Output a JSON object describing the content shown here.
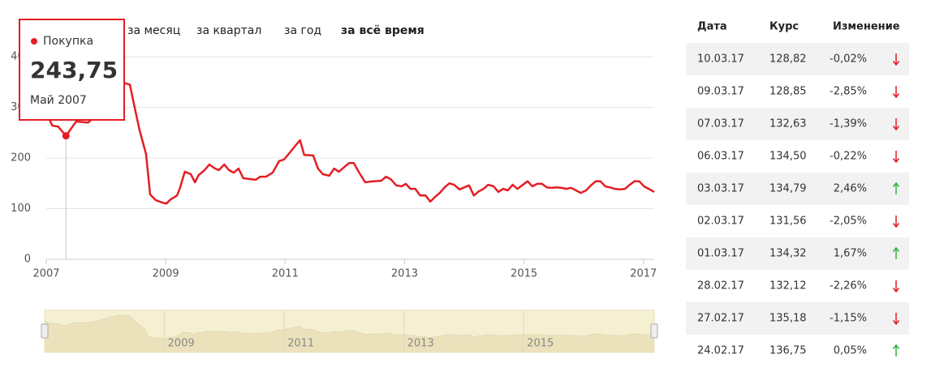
{
  "tabs": [
    "за месяц",
    "за квартал",
    "за год",
    "за всё время"
  ],
  "chart_data": {
    "type": "line",
    "x": [
      2007.0,
      2007.1,
      2007.2,
      2007.33,
      2007.5,
      2007.7,
      2007.9,
      2008.1,
      2008.25,
      2008.4,
      2008.47,
      2008.56,
      2008.67,
      2008.74,
      2008.83,
      2008.94,
      2009.01,
      2009.08,
      2009.19,
      2009.24,
      2009.32,
      2009.42,
      2009.49,
      2009.55,
      2009.65,
      2009.73,
      2009.83,
      2009.89,
      2009.98,
      2010.06,
      2010.14,
      2010.22,
      2010.3,
      2010.44,
      2010.51,
      2010.58,
      2010.68,
      2010.79,
      2010.9,
      2010.98,
      2011.06,
      2011.17,
      2011.25,
      2011.32,
      2011.47,
      2011.55,
      2011.63,
      2011.74,
      2011.82,
      2011.9,
      2011.99,
      2012.07,
      2012.15,
      2012.23,
      2012.34,
      2012.48,
      2012.61,
      2012.69,
      2012.77,
      2012.86,
      2012.95,
      2013.02,
      2013.1,
      2013.18,
      2013.26,
      2013.35,
      2013.43,
      2013.51,
      2013.59,
      2013.67,
      2013.75,
      2013.83,
      2013.92,
      2014.0,
      2014.08,
      2014.16,
      2014.24,
      2014.32,
      2014.4,
      2014.49,
      2014.57,
      2014.65,
      2014.73,
      2014.81,
      2014.89,
      2014.98,
      2015.06,
      2015.14,
      2015.22,
      2015.3,
      2015.38,
      2015.46,
      2015.55,
      2015.63,
      2015.71,
      2015.79,
      2015.87,
      2015.95,
      2016.04,
      2016.12,
      2016.2,
      2016.28,
      2016.36,
      2016.44,
      2016.52,
      2016.61,
      2016.69,
      2016.77,
      2016.85,
      2016.93,
      2017.01,
      2017.18
    ],
    "series": [
      {
        "name": "Покупка",
        "color": "#e31e24",
        "values": [
          290,
          264,
          262,
          243.75,
          272,
          270,
          290,
          330,
          350,
          345,
          305,
          256,
          208,
          128,
          117,
          112,
          110,
          118,
          126,
          141,
          173,
          168,
          152,
          166,
          176,
          187,
          179,
          176,
          187,
          176,
          171,
          179,
          160,
          158,
          157,
          163,
          163,
          171,
          194,
          197,
          208,
          224,
          235,
          206,
          205,
          179,
          168,
          165,
          179,
          173,
          182,
          190,
          190,
          173,
          152,
          154,
          155,
          163,
          158,
          146,
          144,
          149,
          139,
          139,
          126,
          126,
          114,
          123,
          131,
          142,
          150,
          147,
          138,
          142,
          146,
          126,
          134,
          139,
          147,
          144,
          133,
          139,
          136,
          147,
          139,
          147,
          154,
          144,
          149,
          149,
          142,
          141,
          142,
          141,
          139,
          141,
          136,
          131,
          136,
          146,
          154,
          154,
          144,
          142,
          139,
          138,
          139,
          147,
          154,
          154,
          144,
          133
        ]
      }
    ],
    "xlim": [
      2007,
      2017.18
    ],
    "xticks": [
      2007,
      2009,
      2011,
      2013,
      2015,
      2017
    ],
    "ylim": [
      0,
      400
    ],
    "yticks": [
      0,
      100,
      200,
      300,
      400
    ],
    "grid": true,
    "tooltip": {
      "index": 3,
      "value_label": "243,75",
      "x_label": "Май 2007"
    }
  },
  "table": {
    "headers": [
      "Дата",
      "Курс",
      "Изменение"
    ],
    "rows": [
      {
        "date": "10.03.17",
        "rate": "128,82",
        "change": "-0,02%",
        "direction": "down"
      },
      {
        "date": "09.03.17",
        "rate": "128,85",
        "change": "-2,85%",
        "direction": "down"
      },
      {
        "date": "07.03.17",
        "rate": "132,63",
        "change": "-1,39%",
        "direction": "down"
      },
      {
        "date": "06.03.17",
        "rate": "134,50",
        "change": "-0,22%",
        "direction": "down"
      },
      {
        "date": "03.03.17",
        "rate": "134,79",
        "change": "2,46%",
        "direction": "up"
      },
      {
        "date": "02.03.17",
        "rate": "131,56",
        "change": "-2,05%",
        "direction": "down"
      },
      {
        "date": "01.03.17",
        "rate": "134,32",
        "change": "1,67%",
        "direction": "up"
      },
      {
        "date": "28.02.17",
        "rate": "132,12",
        "change": "-2,26%",
        "direction": "down"
      },
      {
        "date": "27.02.17",
        "rate": "135,18",
        "change": "-1,15%",
        "direction": "down"
      },
      {
        "date": "24.02.17",
        "rate": "136,75",
        "change": "0,05%",
        "direction": "up"
      }
    ]
  }
}
